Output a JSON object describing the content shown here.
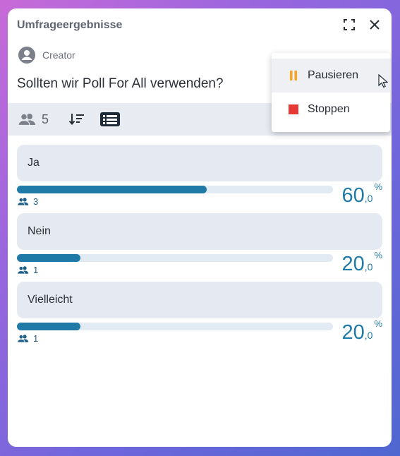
{
  "header": {
    "title": "Umfrageergebnisse"
  },
  "creator": {
    "label": "Creator"
  },
  "question": "Sollten wir Poll For All verwenden?",
  "toolbar": {
    "voters_count": "5"
  },
  "options": [
    {
      "label": "Ja",
      "votes": "3",
      "pct_int": "60",
      "pct_dec": ",0",
      "pct_sym": "%",
      "fraction": 0.6
    },
    {
      "label": "Nein",
      "votes": "1",
      "pct_int": "20",
      "pct_dec": ",0",
      "pct_sym": "%",
      "fraction": 0.2
    },
    {
      "label": "Vielleicht",
      "votes": "1",
      "pct_int": "20",
      "pct_dec": ",0",
      "pct_sym": "%",
      "fraction": 0.2
    }
  ],
  "menu": {
    "items": [
      {
        "label": "Pausieren",
        "icon": "pause-icon",
        "color": "#f5a623"
      },
      {
        "label": "Stoppen",
        "icon": "stop-icon",
        "color": "#e53935"
      }
    ]
  },
  "colors": {
    "accent": "#1f7aa8",
    "track": "#e2eaf3",
    "option_bg": "#e5e9f1",
    "toolbar_bg": "#e8ecf2"
  }
}
